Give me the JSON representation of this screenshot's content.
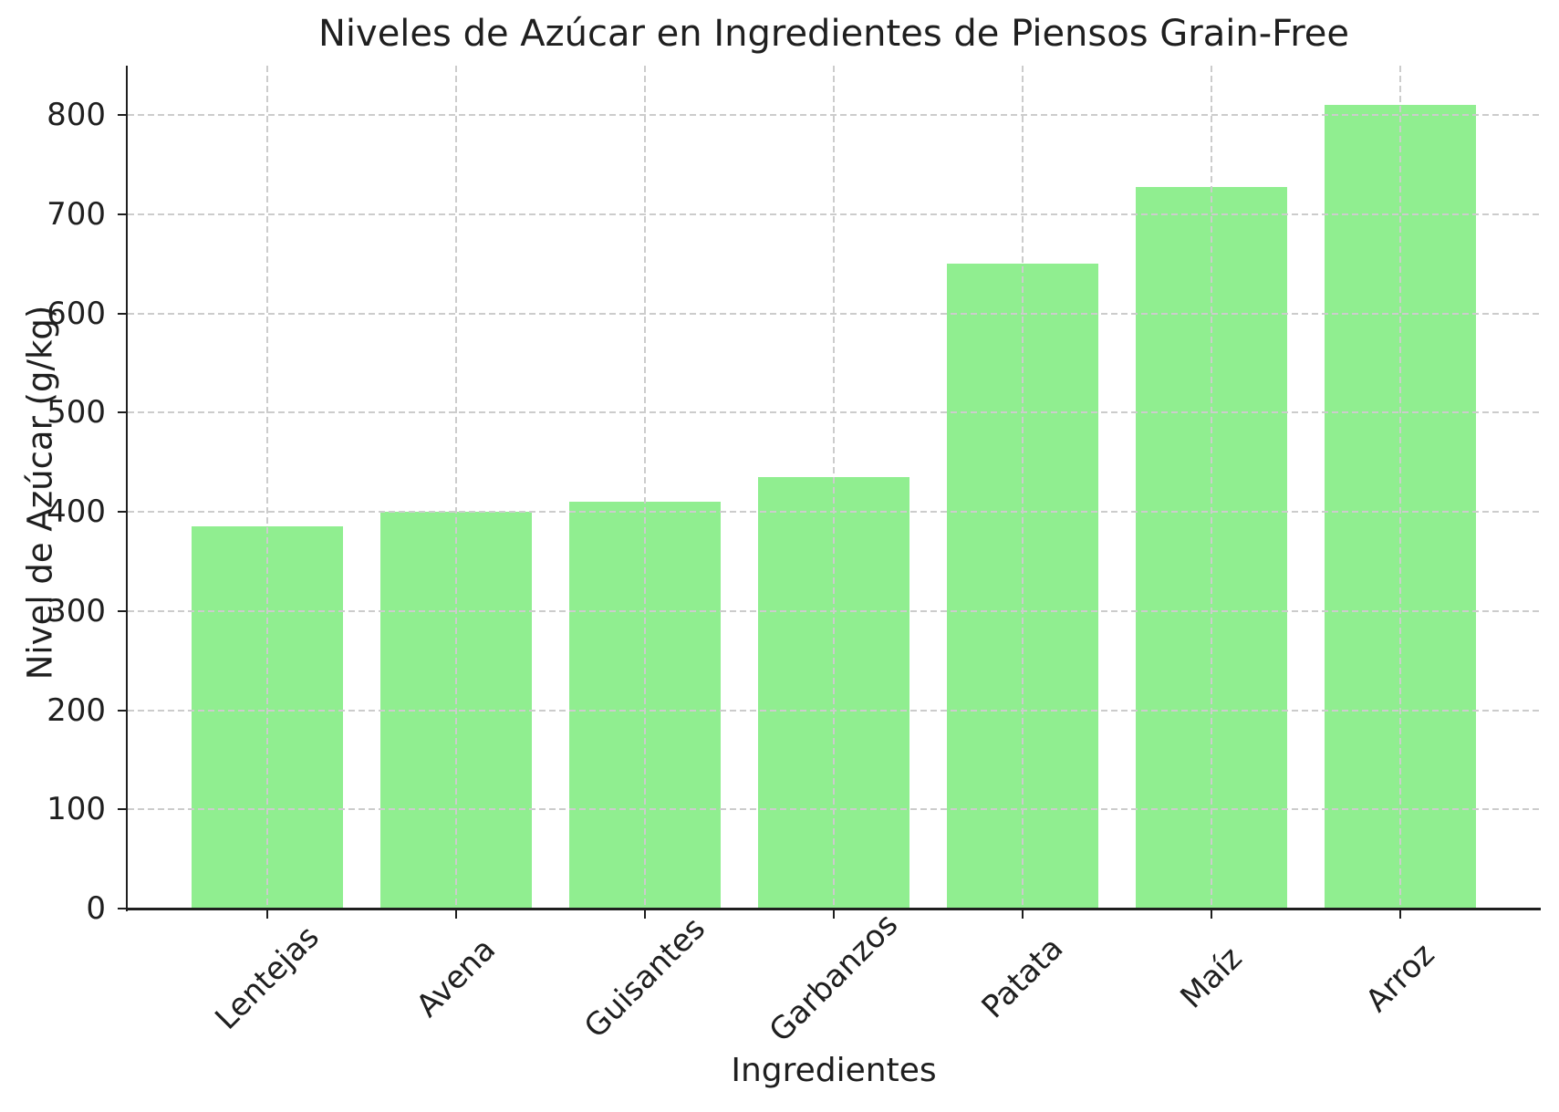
{
  "chart_data": {
    "type": "bar",
    "title": "Niveles de Azúcar en Ingredientes de Piensos Grain-Free",
    "xlabel": "Ingredientes",
    "ylabel": "Nivel de Azúcar (g/kg)",
    "categories": [
      "Lentejas",
      "Avena",
      "Guisantes",
      "Garbanzos",
      "Patata",
      "Maíz",
      "Arroz"
    ],
    "values": [
      385,
      400,
      410,
      435,
      650,
      728,
      810
    ],
    "yticks": [
      0,
      100,
      200,
      300,
      400,
      500,
      600,
      700,
      800
    ],
    "ylim": [
      0,
      850
    ],
    "xlim": [
      -0.74,
      6.74
    ],
    "bar_width": 0.8,
    "xtick_rotation_deg": 45,
    "grid": {
      "horizontal": true,
      "vertical": true,
      "style": "dashed",
      "above_bars": true
    },
    "legend": "none",
    "spines": [
      "left",
      "bottom"
    ],
    "colors": {
      "bar": "#90EE90",
      "grid": "#cccccc",
      "axis": "#1f1f1f",
      "text": "#1f1f1f",
      "background": "#ffffff"
    }
  }
}
